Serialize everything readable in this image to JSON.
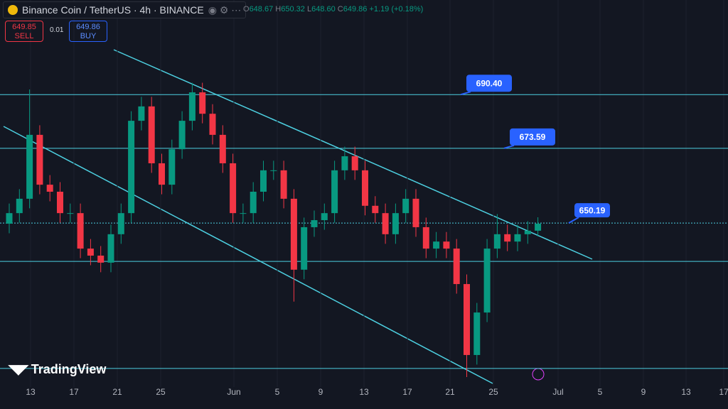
{
  "header": {
    "title": "Binance Coin / TetherUS · 4h · BINANCE",
    "ohlc": [
      {
        "key": "O",
        "text": "648.67"
      },
      {
        "key": "H",
        "text": "650.32"
      },
      {
        "key": "L",
        "text": "648.60"
      },
      {
        "key": "C",
        "text": "649.86"
      }
    ],
    "change": "+1.19 (+0.18%)",
    "sell": {
      "price": "649.85",
      "label": "SELL"
    },
    "spread": "0.01",
    "buy": {
      "price": "649.86",
      "label": "BUY"
    }
  },
  "logo": "TradingView",
  "chart_data": {
    "type": "candlestick",
    "ylim": [
      600,
      720
    ],
    "xticks": [
      "13",
      "17",
      "21",
      "25",
      "Jun",
      "5",
      "9",
      "13",
      "17",
      "21",
      "25",
      "Jul",
      "5",
      "9",
      "13",
      "17"
    ],
    "up_color": "#089981",
    "down_color": "#f23645",
    "line_color": "#4dd0e1",
    "candles": [
      [
        650.0,
        656.3,
        647.0,
        653.3
      ],
      [
        653.3,
        660.8,
        650.3,
        657.8
      ],
      [
        657.8,
        692.0,
        654.8,
        677.8
      ],
      [
        677.8,
        680.8,
        659.2,
        662.2
      ],
      [
        662.2,
        665.2,
        657.0,
        660.0
      ],
      [
        660.0,
        663.0,
        650.3,
        653.3
      ],
      [
        653.3,
        656.3,
        650.3,
        653.3
      ],
      [
        653.3,
        656.3,
        639.2,
        642.2
      ],
      [
        642.2,
        645.2,
        637.0,
        640.0
      ],
      [
        640.0,
        643.0,
        634.8,
        637.8
      ],
      [
        637.8,
        649.7,
        634.8,
        646.7
      ],
      [
        646.7,
        656.3,
        643.7,
        653.3
      ],
      [
        653.3,
        685.2,
        650.3,
        682.2
      ],
      [
        682.2,
        689.7,
        679.2,
        686.7
      ],
      [
        686.7,
        689.7,
        665.9,
        668.9
      ],
      [
        668.9,
        671.9,
        659.2,
        662.2
      ],
      [
        662.2,
        676.3,
        659.2,
        673.3
      ],
      [
        673.3,
        685.2,
        670.3,
        682.2
      ],
      [
        682.2,
        694.1,
        679.2,
        691.1
      ],
      [
        691.1,
        694.1,
        681.4,
        684.4
      ],
      [
        684.4,
        687.4,
        674.8,
        677.8
      ],
      [
        677.8,
        680.8,
        665.9,
        668.9
      ],
      [
        668.9,
        671.9,
        650.3,
        653.3
      ],
      [
        653.3,
        656.3,
        650.3,
        653.3
      ],
      [
        653.3,
        663.0,
        650.3,
        660.0
      ],
      [
        660.0,
        669.7,
        657.0,
        666.7
      ],
      [
        666.7,
        669.7,
        663.7,
        666.7
      ],
      [
        666.7,
        669.7,
        654.8,
        657.8
      ],
      [
        657.8,
        660.8,
        625.6,
        635.6
      ],
      [
        635.6,
        651.9,
        632.6,
        648.9
      ],
      [
        648.9,
        654.1,
        645.9,
        651.1
      ],
      [
        651.1,
        656.3,
        648.1,
        653.3
      ],
      [
        653.3,
        669.7,
        650.3,
        666.7
      ],
      [
        666.7,
        674.1,
        663.7,
        671.1
      ],
      [
        671.1,
        674.1,
        663.7,
        666.7
      ],
      [
        666.7,
        669.7,
        652.6,
        655.6
      ],
      [
        655.6,
        658.6,
        650.3,
        653.3
      ],
      [
        653.3,
        656.3,
        643.7,
        646.7
      ],
      [
        646.7,
        656.3,
        643.7,
        653.3
      ],
      [
        653.3,
        660.8,
        650.3,
        657.8
      ],
      [
        657.8,
        660.8,
        645.9,
        648.9
      ],
      [
        648.9,
        651.9,
        639.2,
        642.2
      ],
      [
        642.2,
        647.4,
        639.2,
        644.4
      ],
      [
        644.4,
        647.4,
        639.2,
        642.2
      ],
      [
        642.2,
        645.2,
        628.1,
        631.1
      ],
      [
        631.1,
        634.1,
        602.0,
        608.9
      ],
      [
        608.9,
        625.2,
        605.9,
        622.2
      ],
      [
        622.2,
        645.2,
        619.2,
        642.2
      ],
      [
        642.2,
        653.0,
        639.2,
        646.7
      ],
      [
        646.7,
        649.7,
        641.4,
        644.4
      ],
      [
        644.4,
        649.7,
        641.4,
        646.7
      ],
      [
        646.7,
        650.8,
        643.7,
        647.8
      ],
      [
        647.8,
        652.0,
        646.0,
        650.0
      ]
    ],
    "price_labels": [
      {
        "value": 690.4,
        "label": "690.40"
      },
      {
        "value": 673.59,
        "label": "673.59"
      },
      {
        "value": 650.19,
        "label": "650.19"
      }
    ],
    "levels": [
      638.2,
      604.7
    ]
  }
}
